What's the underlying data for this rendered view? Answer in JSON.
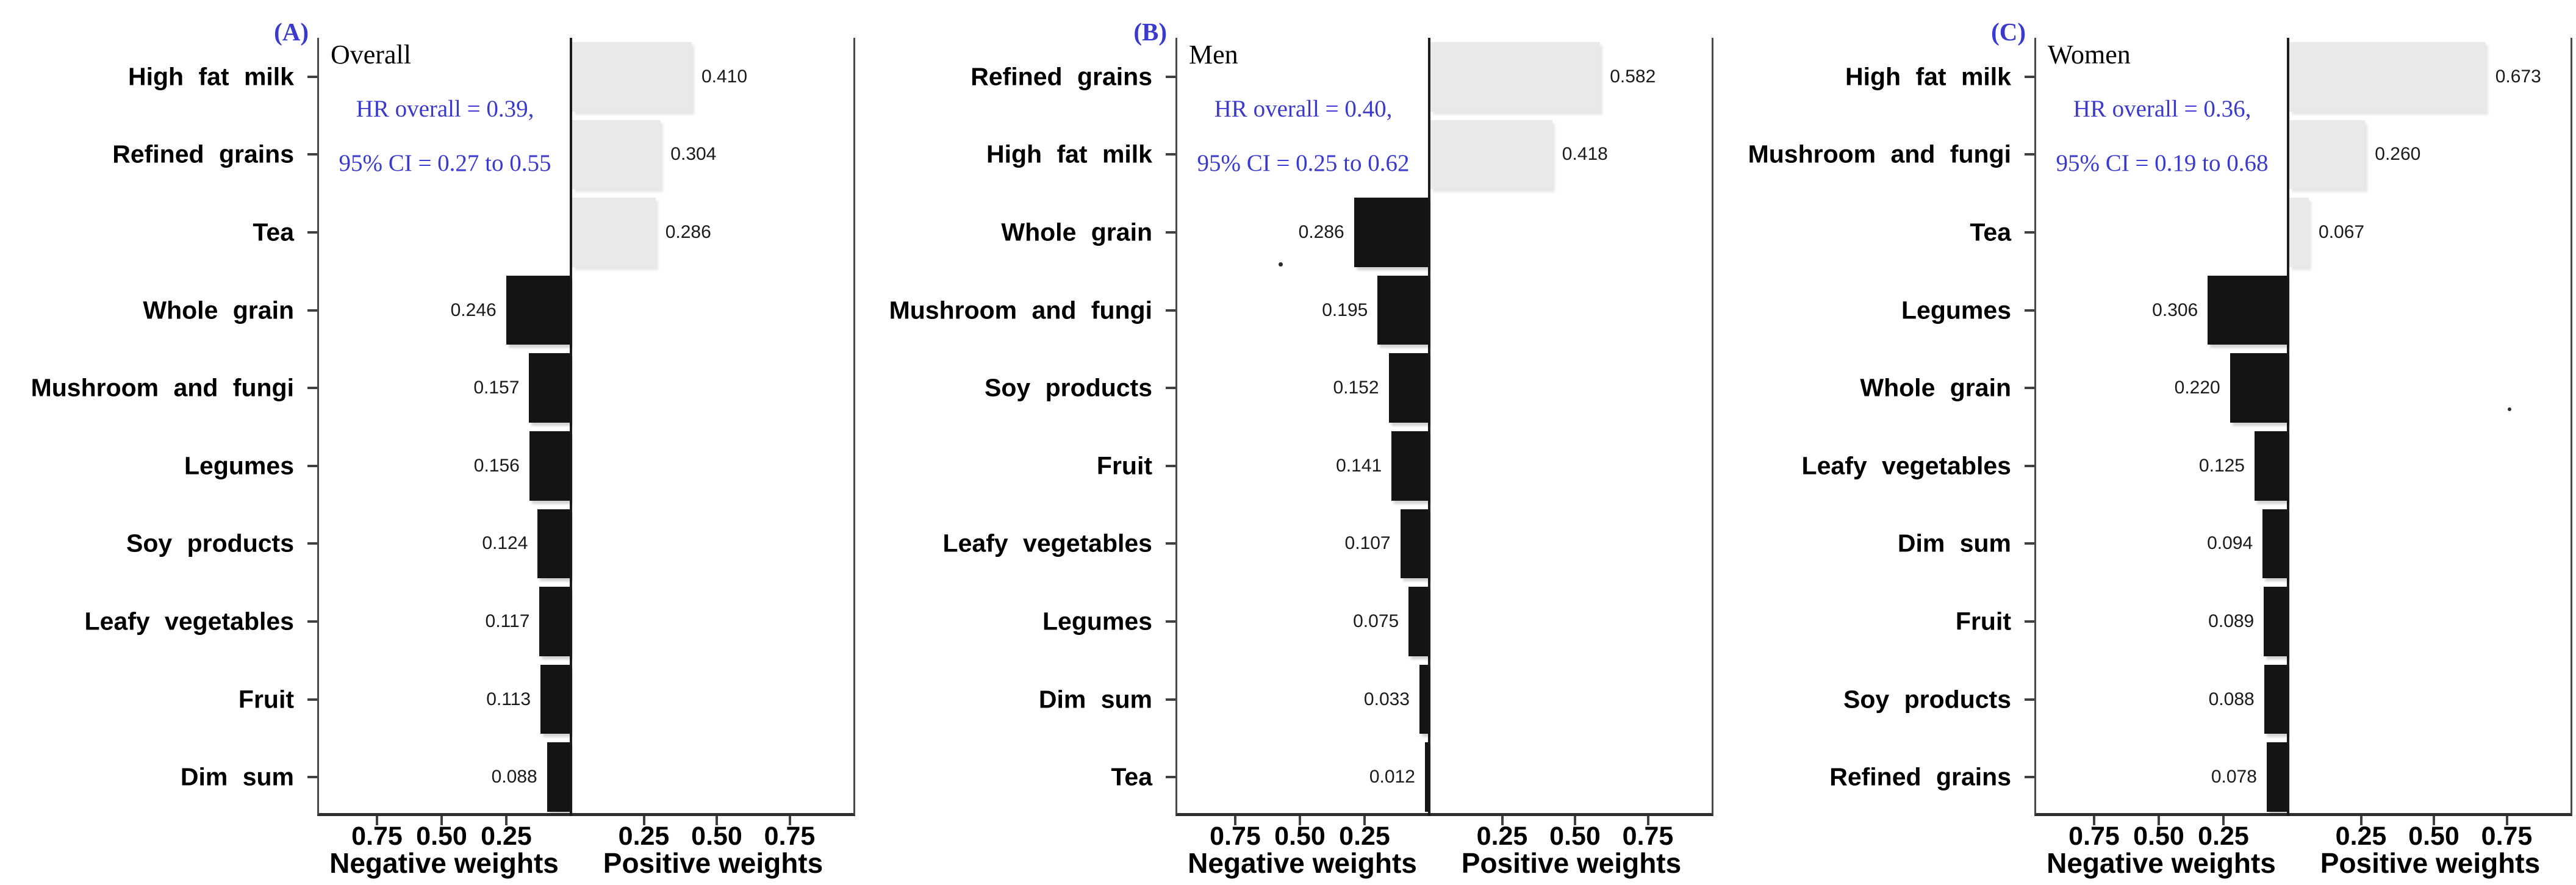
{
  "chart_data": [
    {
      "type": "bar",
      "orientation": "horizontal_diverging",
      "tag": "(A)",
      "title": "Overall",
      "hr_annotation": "HR overall = 0.39,",
      "ci_annotation": "95% CI = 0.27 to 0.55",
      "categories": [
        "High fat milk",
        "Refined grains",
        "Tea",
        "Whole grain",
        "Mushroom and fungi",
        "Legumes",
        "Soy products",
        "Leafy vegetables",
        "Fruit",
        "Dim sum"
      ],
      "weights": [
        0.41,
        0.304,
        0.286,
        -0.246,
        -0.157,
        -0.156,
        -0.124,
        -0.117,
        -0.113,
        -0.088
      ],
      "value_labels": [
        "0.410",
        "0.304",
        "0.286",
        "0.246",
        "0.157",
        "0.156",
        "0.124",
        "0.117",
        "0.113",
        "0.088"
      ],
      "xticks_negative": [
        "0.75",
        "0.50",
        "0.25"
      ],
      "xticks_positive": [
        "0.25",
        "0.50",
        "0.75"
      ],
      "xlabel_negative": "Negative weights",
      "xlabel_positive": "Positive weights",
      "xlim_per_side": [
        0,
        1.0
      ],
      "grid": "off",
      "legend": "none",
      "bar_color_positive": "#e9e9e9",
      "bar_color_negative": "#141414",
      "annotation_color": "#3a3ace"
    },
    {
      "type": "bar",
      "orientation": "horizontal_diverging",
      "tag": "(B)",
      "title": "Men",
      "hr_annotation": "HR overall = 0.40,",
      "ci_annotation": "95% CI = 0.25 to 0.62",
      "categories": [
        "Refined grains",
        "High fat milk",
        "Whole grain",
        "Mushroom and fungi",
        "Soy products",
        "Fruit",
        "Leafy vegetables",
        "Legumes",
        "Dim sum",
        "Tea"
      ],
      "weights": [
        0.582,
        0.418,
        -0.286,
        -0.195,
        -0.152,
        -0.141,
        -0.107,
        -0.075,
        -0.033,
        -0.012
      ],
      "value_labels": [
        "0.582",
        "0.418",
        "0.286",
        "0.195",
        "0.152",
        "0.141",
        "0.107",
        "0.075",
        "0.033",
        "0.012"
      ],
      "xticks_negative": [
        "0.75",
        "0.50",
        "0.25"
      ],
      "xticks_positive": [
        "0.25",
        "0.50",
        "0.75"
      ],
      "xlabel_negative": "Negative weights",
      "xlabel_positive": "Positive weights",
      "xlim_per_side": [
        0,
        1.0
      ],
      "grid": "off",
      "legend": "none",
      "bar_color_positive": "#e9e9e9",
      "bar_color_negative": "#141414",
      "annotation_color": "#3a3ace"
    },
    {
      "type": "bar",
      "orientation": "horizontal_diverging",
      "tag": "(C)",
      "title": "Women",
      "hr_annotation": "HR overall = 0.36,",
      "ci_annotation": "95% CI = 0.19 to 0.68",
      "categories": [
        "High fat milk",
        "Mushroom and fungi",
        "Tea",
        "Legumes",
        "Whole grain",
        "Leafy vegetables",
        "Dim sum",
        "Fruit",
        "Soy products",
        "Refined grains"
      ],
      "weights": [
        0.673,
        0.26,
        0.067,
        -0.306,
        -0.22,
        -0.125,
        -0.094,
        -0.089,
        -0.088,
        -0.078
      ],
      "value_labels": [
        "0.673",
        "0.260",
        "0.067",
        "0.306",
        "0.220",
        "0.125",
        "0.094",
        "0.089",
        "0.088",
        "0.078"
      ],
      "xticks_negative": [
        "0.75",
        "0.50",
        "0.25"
      ],
      "xticks_positive": [
        "0.25",
        "0.50",
        "0.75"
      ],
      "xlabel_negative": "Negative weights",
      "xlabel_positive": "Positive weights",
      "xlim_per_side": [
        0,
        1.0
      ],
      "grid": "off",
      "legend": "none",
      "bar_color_positive": "#e9e9e9",
      "bar_color_negative": "#141414",
      "annotation_color": "#3a3ace"
    }
  ]
}
